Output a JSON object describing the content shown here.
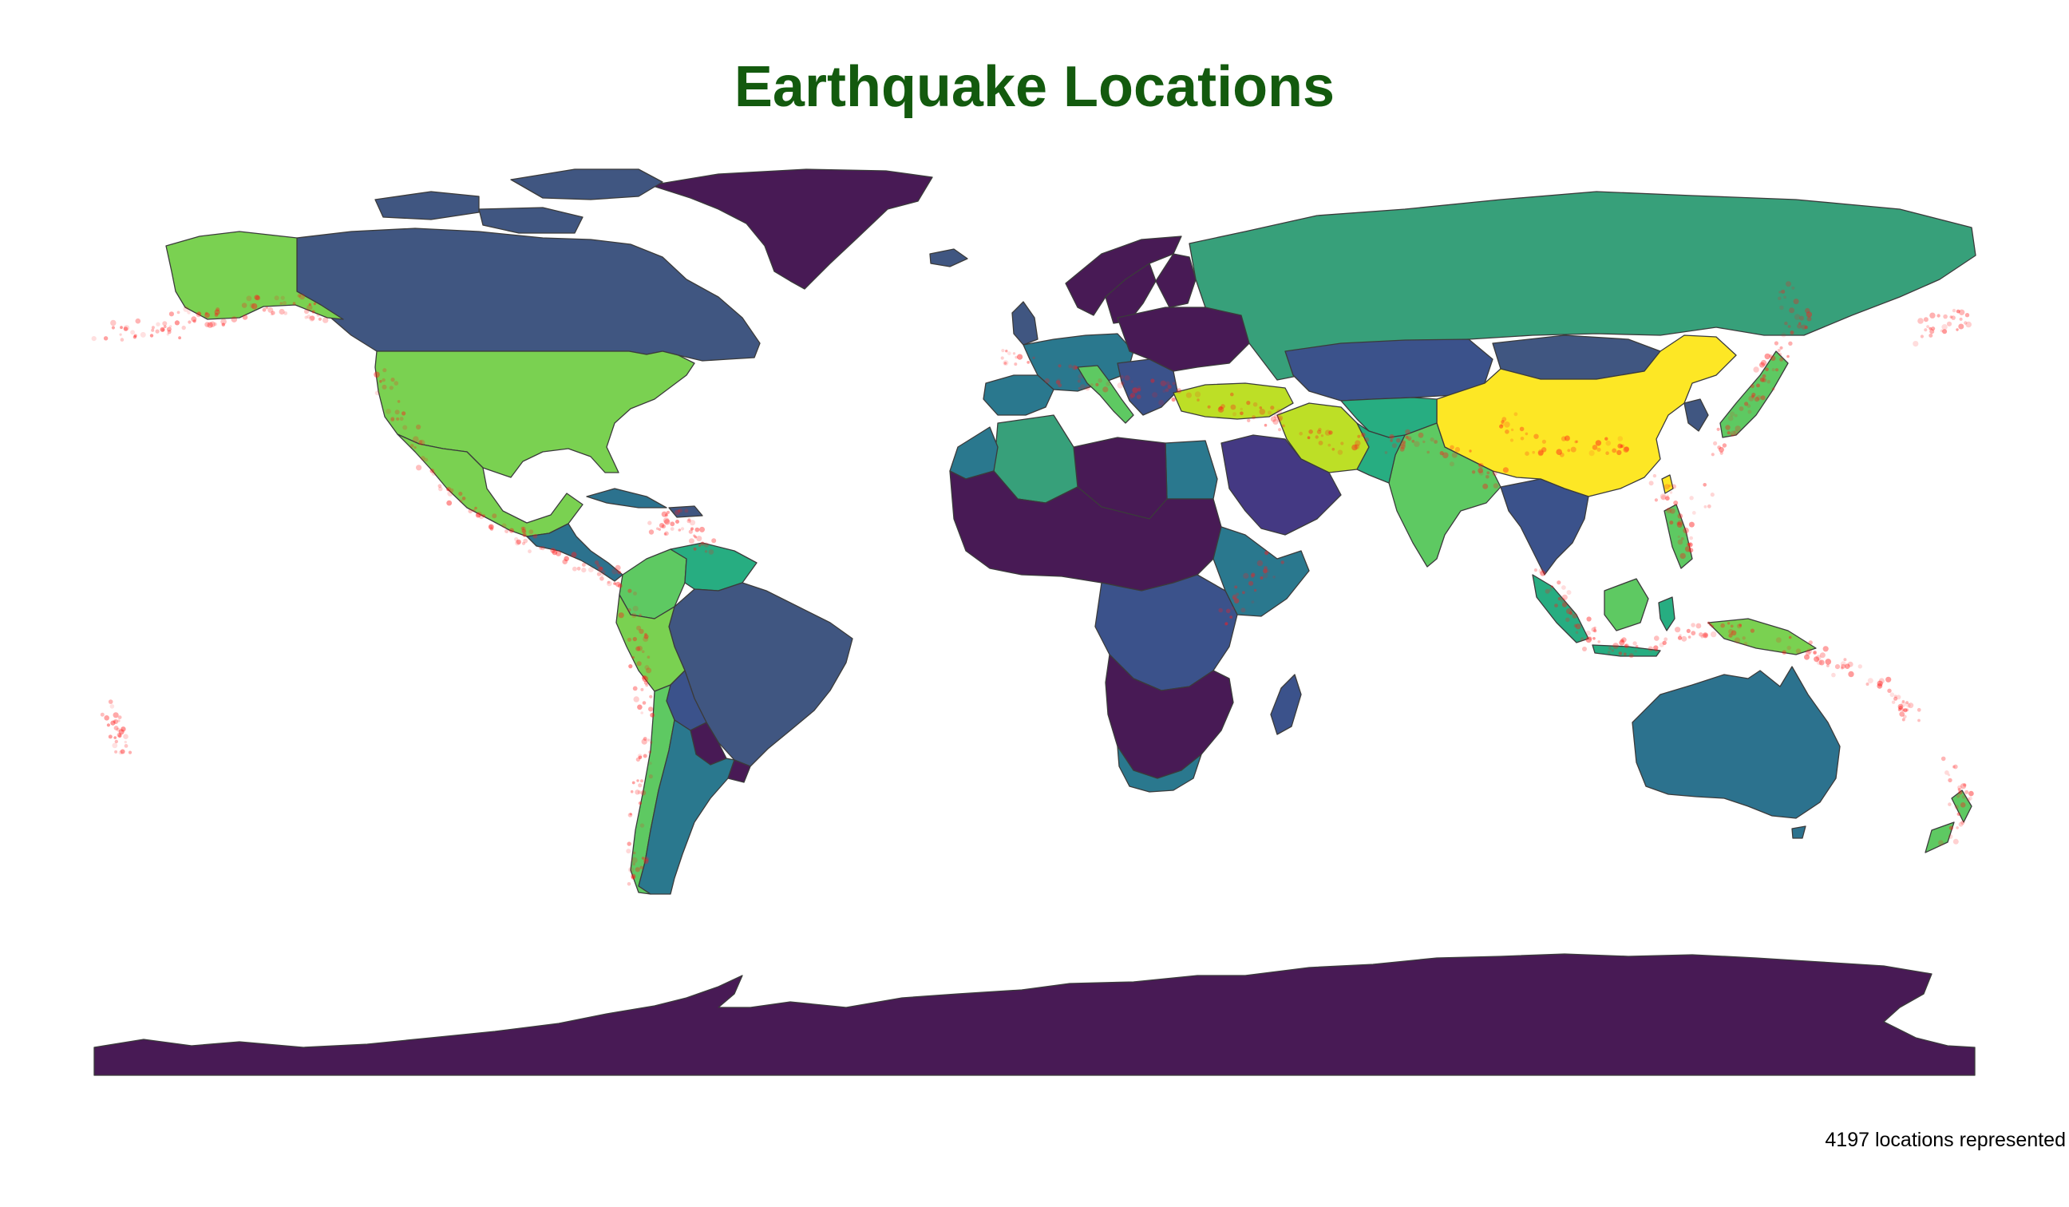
{
  "title": "Earthquake Locations",
  "caption": "4197 locations represented",
  "colors": {
    "title": "#135a0e",
    "quake": "#ff1a1a",
    "stroke": "#3b3b3b",
    "palette": "viridis"
  },
  "map": {
    "projection": "equirectangular",
    "lon_range": [
      -180,
      180
    ],
    "lat_range": [
      -90,
      84
    ]
  }
}
